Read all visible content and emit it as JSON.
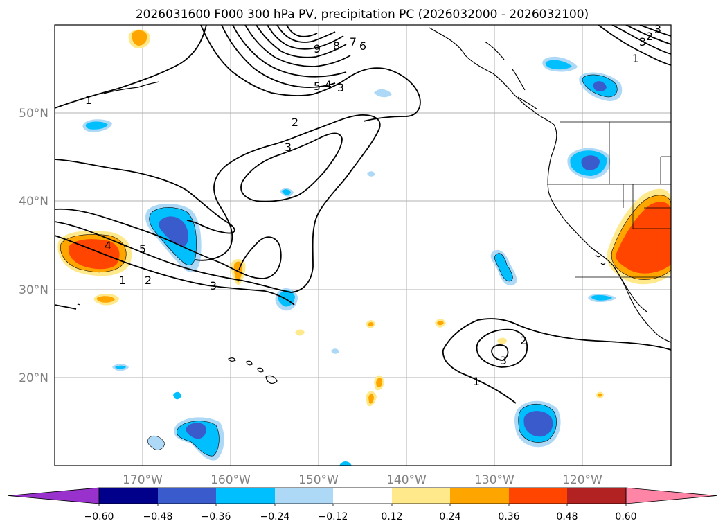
{
  "title": "2026031600 F000 300 hPa PV, precipitation PC (2026032000 - 2026032100)",
  "map": {
    "lon_range": [
      -180,
      -110
    ],
    "lat_range": [
      10,
      60
    ],
    "lon_ticks": [
      "170°W",
      "160°W",
      "150°W",
      "140°W",
      "130°W",
      "120°W"
    ],
    "lat_ticks": [
      "20°N",
      "30°N",
      "40°N",
      "50°N"
    ],
    "grid": true
  },
  "contour_labels": [
    "1",
    "2",
    "3",
    "5",
    "4",
    "3",
    "2",
    "1",
    "5",
    "4",
    "3",
    "2",
    "3",
    "9",
    "8",
    "7",
    "6",
    "3",
    "1",
    "2",
    "3",
    "1"
  ],
  "colorbar": {
    "ticks": [
      "−0.60",
      "−0.48",
      "−0.36",
      "−0.24",
      "−0.12",
      "0.12",
      "0.24",
      "0.36",
      "0.48",
      "0.60"
    ],
    "colors": [
      "#9932cc",
      "#00008b",
      "#3a5bcc",
      "#00bfff",
      "#add8f6",
      "#ffffff",
      "#ffe98a",
      "#ffa500",
      "#ff4500",
      "#b22222",
      "#ff85a7"
    ]
  }
}
